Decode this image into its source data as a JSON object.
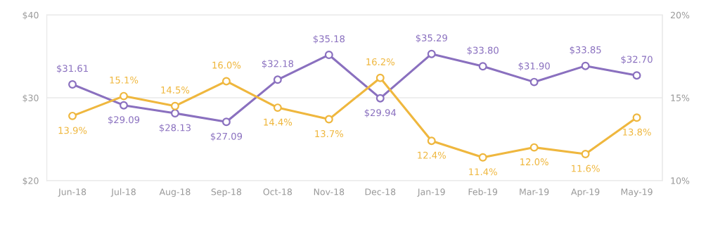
{
  "chart_data": {
    "type": "line",
    "categories": [
      "Jun-18",
      "Jul-18",
      "Aug-18",
      "Sep-18",
      "Oct-18",
      "Nov-18",
      "Dec-18",
      "Jan-19",
      "Feb-19",
      "Mar-19",
      "Apr-19",
      "May-19"
    ],
    "series": [
      {
        "color": "#8a70bf",
        "values": [
          31.61,
          29.09,
          28.13,
          27.09,
          32.18,
          35.18,
          29.94,
          35.29,
          33.8,
          31.9,
          33.85,
          32.7
        ],
        "value_labels": [
          "$31.61",
          "$29.09",
          "$28.13",
          "$27.09",
          "$32.18",
          "$35.18",
          "$29.94",
          "$35.29",
          "$33.80",
          "$31.90",
          "$33.85",
          "$32.70"
        ]
      },
      {
        "color": "#efb73e",
        "axis": "y2",
        "values": [
          13.9,
          15.1,
          14.5,
          16.0,
          14.4,
          13.7,
          16.2,
          12.4,
          11.4,
          12.0,
          11.6,
          13.8
        ],
        "value_labels": [
          "13.9%",
          "15.1%",
          "14.5%",
          "16.0%",
          "14.4%",
          "13.7%",
          "16.2%",
          "12.4%",
          "11.4%",
          "12.0%",
          "11.6%",
          "13.8%"
        ]
      }
    ],
    "ylim": [
      20,
      40
    ],
    "yticks": [
      {
        "value": 20,
        "label": "$20"
      },
      {
        "value": 30,
        "label": "$30"
      },
      {
        "value": 40,
        "label": "$40"
      }
    ],
    "y2lim": [
      10,
      20
    ],
    "y2ticks": [
      {
        "value": 10,
        "label": "10%"
      },
      {
        "value": 15,
        "label": "15%"
      },
      {
        "value": 20,
        "label": "20%"
      }
    ],
    "grid": "y",
    "marker": "circle",
    "line_style": "solid"
  }
}
